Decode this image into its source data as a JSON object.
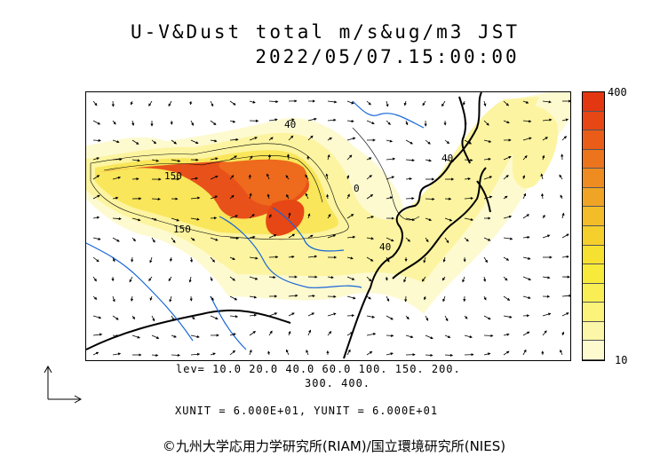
{
  "header": {
    "title_line1": "U-V&Dust total m/s&ug/m3 JST",
    "title_line2": "2022/05/07.15:00:00"
  },
  "colorbar": {
    "max_label": "400",
    "min_label": "10",
    "colors_bottom_to_top": [
      "#fdfad0",
      "#fcf6a8",
      "#fbf37a",
      "#f9ef55",
      "#f7ea3a",
      "#f6e030",
      "#f5cf2c",
      "#f3bc29",
      "#f0a425",
      "#ee8c21",
      "#eb741d",
      "#e95d19",
      "#e64715",
      "#e33712"
    ]
  },
  "footer": {
    "levels_line1": "lev= 10.0 20.0 40.0 60.0 100. 150. 200.",
    "levels_line2": "300. 400.",
    "units_line": "XUNIT = 6.000E+01, YUNIT = 6.000E+01",
    "credit": "©九州大学応用力学研究所(RIAM)/国立環境研究所(NIES)"
  },
  "map": {
    "contour_labels": [
      {
        "text": "150"
      },
      {
        "text": "150"
      },
      {
        "text": "40"
      },
      {
        "text": "40"
      },
      {
        "text": "40"
      },
      {
        "text": "0"
      }
    ]
  }
}
